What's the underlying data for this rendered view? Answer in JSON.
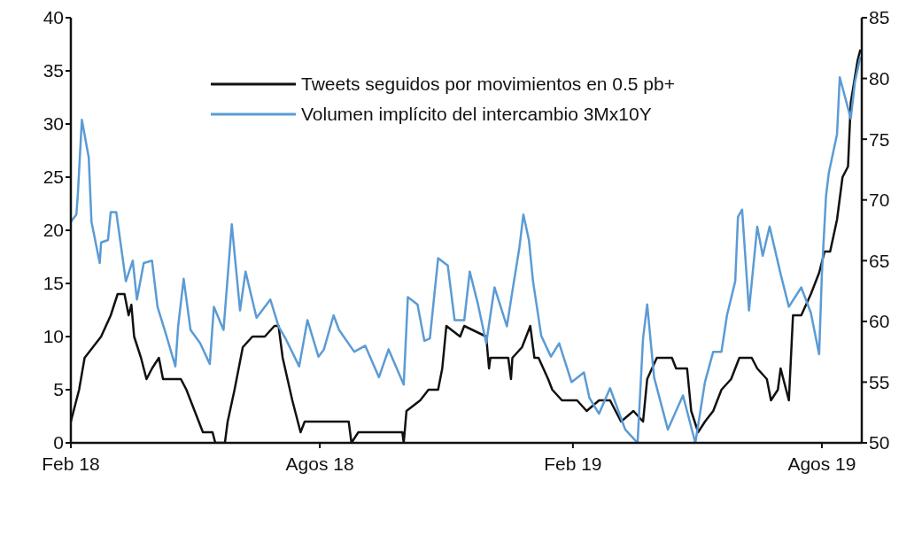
{
  "chart_data": {
    "type": "line",
    "legend": "top",
    "marker": "none",
    "grid": false,
    "xlim": [
      "2018-02-01",
      "2019-08-30"
    ],
    "xticks": [
      {
        "value": "2018-02-01",
        "label": "Feb 18"
      },
      {
        "value": "2018-08-01",
        "label": "Agos 18"
      },
      {
        "value": "2019-02-01",
        "label": "Feb 19"
      },
      {
        "value": "2019-08-01",
        "label": "Agos 19"
      }
    ],
    "ylim": [
      0,
      40
    ],
    "yticks": [
      0,
      5,
      10,
      15,
      20,
      25,
      30,
      35,
      40
    ],
    "y2lim": [
      50,
      85
    ],
    "y2ticks": [
      50,
      55,
      60,
      65,
      70,
      75,
      80,
      85
    ],
    "series": [
      {
        "name": "Tweets seguidos por movimientos en 0.5 pb+",
        "color": "#111111",
        "x": [
          "2018-02-01",
          "2018-02-07",
          "2018-02-11",
          "2018-02-17",
          "2018-02-23",
          "2018-03-02",
          "2018-03-07",
          "2018-03-12",
          "2018-03-15",
          "2018-03-17",
          "2018-03-19",
          "2018-03-24",
          "2018-03-28",
          "2018-04-01",
          "2018-04-06",
          "2018-04-09",
          "2018-04-22",
          "2018-04-26",
          "2018-05-02",
          "2018-05-08",
          "2018-05-15",
          "2018-05-17",
          "2018-05-24",
          "2018-05-26",
          "2018-05-31",
          "2018-06-06",
          "2018-06-13",
          "2018-06-22",
          "2018-06-29",
          "2018-07-02",
          "2018-07-05",
          "2018-07-12",
          "2018-07-18",
          "2018-07-21",
          "2018-08-22",
          "2018-08-24",
          "2018-08-29",
          "2018-09-30",
          "2018-10-01",
          "2018-10-03",
          "2018-10-13",
          "2018-10-19",
          "2018-10-26",
          "2018-10-29",
          "2018-11-01",
          "2018-11-11",
          "2018-11-14",
          "2018-11-30",
          "2018-12-02",
          "2018-12-03",
          "2018-12-16",
          "2018-12-18",
          "2018-12-19",
          "2018-12-26",
          "2019-01-01",
          "2019-01-04",
          "2019-01-07",
          "2019-01-14",
          "2019-01-17",
          "2019-01-24",
          "2019-02-04",
          "2019-02-11",
          "2019-02-20",
          "2019-02-28",
          "2019-03-08",
          "2019-03-17",
          "2019-03-24",
          "2019-03-27",
          "2019-04-03",
          "2019-04-14",
          "2019-04-17",
          "2019-04-25",
          "2019-04-28",
          "2019-05-03",
          "2019-05-08",
          "2019-05-14",
          "2019-05-20",
          "2019-05-27",
          "2019-06-02",
          "2019-06-11",
          "2019-06-15",
          "2019-06-22",
          "2019-06-25",
          "2019-06-30",
          "2019-07-02",
          "2019-07-08",
          "2019-07-11",
          "2019-07-17",
          "2019-07-24",
          "2019-07-30",
          "2019-08-03",
          "2019-08-07",
          "2019-08-12",
          "2019-08-16",
          "2019-08-20",
          "2019-08-22",
          "2019-08-27",
          "2019-08-29"
        ],
        "values": [
          2,
          5,
          8,
          9,
          10,
          12,
          14,
          14,
          12,
          13,
          10,
          8,
          6,
          7,
          8,
          6,
          6,
          5,
          3,
          1,
          1,
          0,
          0,
          2,
          5,
          9,
          10,
          10,
          11,
          11,
          8,
          4,
          1,
          2,
          2,
          0,
          1,
          1,
          0,
          3,
          4,
          5,
          5,
          7,
          11,
          10,
          11,
          10,
          7,
          8,
          8,
          6,
          8,
          9,
          11,
          8,
          8,
          6,
          5,
          4,
          4,
          3,
          4,
          4,
          2,
          3,
          2,
          6,
          8,
          8,
          7,
          7,
          3,
          1,
          2,
          3,
          5,
          6,
          8,
          8,
          7,
          6,
          4,
          5,
          7,
          4,
          12,
          12,
          14,
          16,
          18,
          18,
          21,
          25,
          26,
          32,
          36,
          37
        ]
      },
      {
        "name": "Volumen implícito del intercambio 3Mx10Y",
        "color": "#5b9bd5",
        "axis": "y2",
        "x": [
          "2018-02-01",
          "2018-02-05",
          "2018-02-06",
          "2018-02-09",
          "2018-02-14",
          "2018-02-16",
          "2018-02-22",
          "2018-02-23",
          "2018-02-28",
          "2018-03-02",
          "2018-03-06",
          "2018-03-13",
          "2018-03-18",
          "2018-03-21",
          "2018-03-26",
          "2018-04-01",
          "2018-04-05",
          "2018-04-11",
          "2018-04-18",
          "2018-04-20",
          "2018-04-24",
          "2018-04-29",
          "2018-05-06",
          "2018-05-13",
          "2018-05-16",
          "2018-05-23",
          "2018-05-29",
          "2018-06-04",
          "2018-06-08",
          "2018-06-16",
          "2018-06-26",
          "2018-07-02",
          "2018-07-07",
          "2018-07-17",
          "2018-07-23",
          "2018-07-31",
          "2018-08-04",
          "2018-08-11",
          "2018-08-15",
          "2018-08-26",
          "2018-09-03",
          "2018-09-13",
          "2018-09-20",
          "2018-10-01",
          "2018-10-04",
          "2018-10-11",
          "2018-10-16",
          "2018-10-20",
          "2018-10-26",
          "2018-11-02",
          "2018-11-07",
          "2018-11-14",
          "2018-11-18",
          "2018-11-24",
          "2018-11-30",
          "2018-12-06",
          "2018-12-15",
          "2018-12-19",
          "2018-12-24",
          "2018-12-27",
          "2018-12-31",
          "2019-01-03",
          "2019-01-09",
          "2019-01-16",
          "2019-01-22",
          "2019-01-31",
          "2019-02-09",
          "2019-02-13",
          "2019-02-20",
          "2019-02-28",
          "2019-03-11",
          "2019-03-20",
          "2019-03-24",
          "2019-03-27",
          "2019-04-01",
          "2019-04-11",
          "2019-04-22",
          "2019-05-01",
          "2019-05-08",
          "2019-05-14",
          "2019-05-20",
          "2019-05-24",
          "2019-05-30",
          "2019-06-01",
          "2019-06-04",
          "2019-06-09",
          "2019-06-15",
          "2019-06-19",
          "2019-06-24",
          "2019-07-02",
          "2019-07-08",
          "2019-07-17",
          "2019-07-24",
          "2019-07-30",
          "2019-08-01",
          "2019-08-04",
          "2019-08-06",
          "2019-08-12",
          "2019-08-14",
          "2019-08-22",
          "2019-08-25",
          "2019-08-29"
        ],
        "values": [
          68.2,
          68.8,
          70.3,
          76.6,
          73.5,
          68.2,
          64.8,
          66.5,
          66.7,
          69,
          69,
          63.3,
          65,
          61.8,
          64.8,
          65,
          61.2,
          59,
          56.3,
          59.6,
          63.5,
          59.3,
          58.2,
          56.5,
          61.2,
          59.3,
          68,
          60.9,
          64.1,
          60.3,
          61.8,
          59.6,
          58.6,
          56.3,
          60.1,
          57.1,
          57.7,
          60.5,
          59.3,
          57.5,
          58,
          55.4,
          57.7,
          54.8,
          62,
          61.4,
          58.4,
          58.6,
          65.2,
          64.6,
          60.1,
          60.1,
          64.1,
          61.4,
          58.2,
          62.8,
          59.6,
          62.5,
          66,
          68.8,
          66.7,
          63.3,
          58.8,
          57.1,
          58.2,
          55,
          55.8,
          53.7,
          52.4,
          54.5,
          51.1,
          50,
          58.6,
          61.4,
          55.4,
          51.1,
          53.9,
          50,
          55,
          57.5,
          57.5,
          60.5,
          63.3,
          68.6,
          69.2,
          60.9,
          67.8,
          65.4,
          67.8,
          63.9,
          61.2,
          62.8,
          60.7,
          57.3,
          63.9,
          70.3,
          72.2,
          75.4,
          80.1,
          76.7,
          79.7,
          81.8
        ]
      }
    ]
  }
}
